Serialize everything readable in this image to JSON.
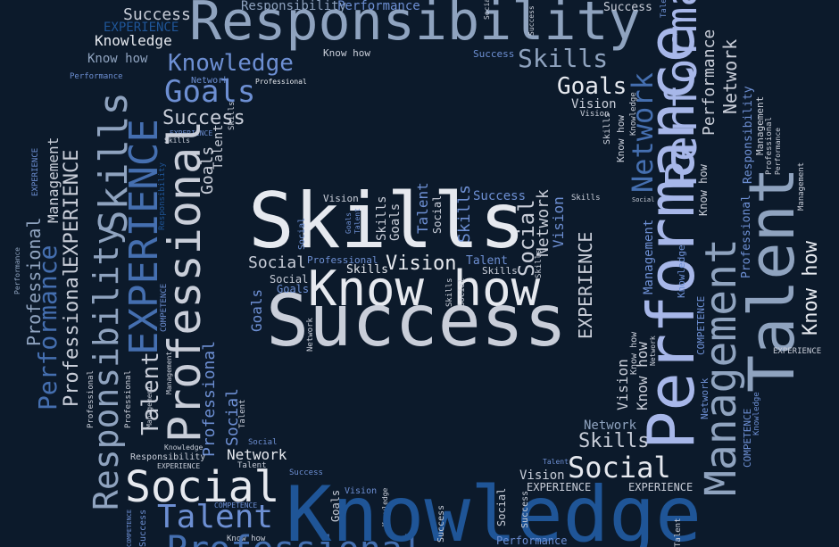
{
  "words": {
    "responsibility": "Responsibility",
    "performance": "Performance",
    "knowledge": "Knowledge",
    "skills": "Skills",
    "success": "Success",
    "experience": "EXPERIENCE",
    "professional": "Professional",
    "talent": "Talent",
    "management": "Management",
    "network": "Network",
    "social": "Social",
    "goals": "Goals",
    "vision": "Vision",
    "know_how": "Know how",
    "competence": "COMPETENCE"
  },
  "colors": {
    "background": "#0c1a2b",
    "pale": "#c9ced9",
    "grey_blue": "#8fa3bf",
    "medium_blue": "#6d8fd3",
    "deep_blue": "#1f5597",
    "white": "#e6e9ef",
    "lavender": "#a7b7e9",
    "steel_blue": "#456fb0"
  }
}
